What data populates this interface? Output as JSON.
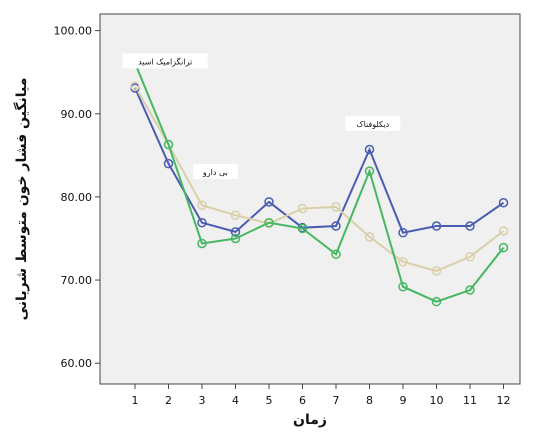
{
  "chart_data": {
    "type": "line",
    "title": "",
    "xlabel": "زمان",
    "ylabel": "میانگین فشار خون متوسط شریانی",
    "categories": [
      "1",
      "2",
      "3",
      "4",
      "5",
      "6",
      "7",
      "8",
      "9",
      "10",
      "11",
      "12"
    ],
    "ylim": [
      57.5,
      102.0
    ],
    "yticks": [
      "60.00",
      "70.00",
      "80.00",
      "90.00",
      "100.00"
    ],
    "grid": false,
    "background": "#f0f0f0",
    "series": [
      {
        "name": "ترانگزامیک اسید",
        "color": "#4a5cb0",
        "values": [
          93.1,
          84.0,
          76.9,
          75.8,
          79.4,
          76.3,
          76.5,
          85.7,
          75.7,
          76.5,
          76.5,
          79.3
        ]
      },
      {
        "name": "بی دارو",
        "color": "#d9cfa8",
        "values": [
          93.3,
          86.3,
          79.0,
          77.8,
          76.8,
          78.6,
          78.8,
          75.2,
          72.2,
          71.1,
          72.8,
          75.9
        ]
      },
      {
        "name": "دیکلوفناک",
        "color": "#44b860",
        "values": [
          96.1,
          86.3,
          74.4,
          75.0,
          76.9,
          76.2,
          73.1,
          83.1,
          69.2,
          67.4,
          68.8,
          73.9
        ]
      }
    ],
    "annotations": [
      {
        "text": "ترانگزامیک اسید",
        "x": 1.9,
        "y": 96.3
      },
      {
        "text": "بی دارو",
        "x": 3.4,
        "y": 83.0
      },
      {
        "text": "دیکلوفناک",
        "x": 8.1,
        "y": 88.8
      }
    ]
  }
}
